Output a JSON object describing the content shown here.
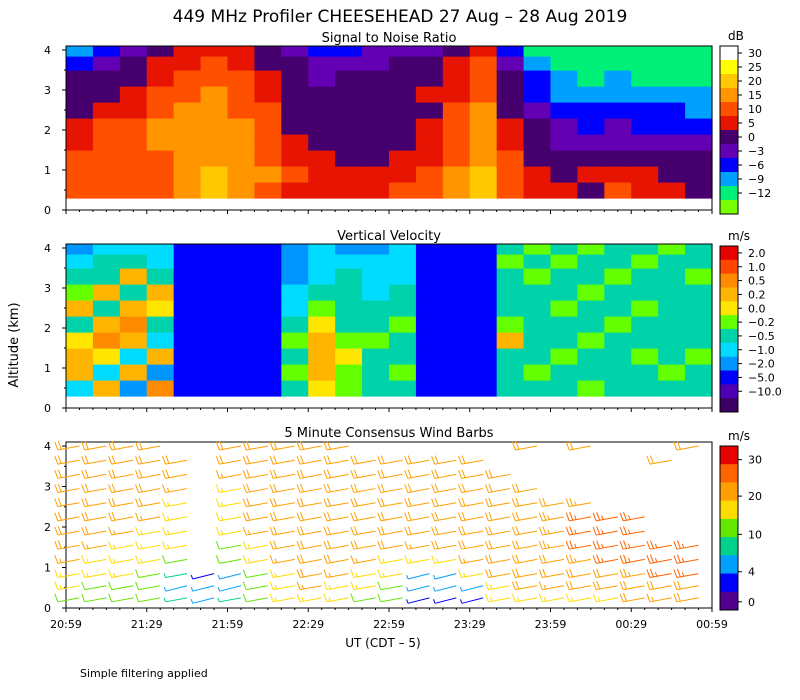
{
  "figure": {
    "title": "449 MHz Profiler CHEESEHEAD 27 Aug – 28 Aug 2019",
    "ylabel": "Altitude (km)",
    "xlabel": "UT  (CDT – 5)",
    "footnote": "Simple filtering applied"
  },
  "chart_data": [
    {
      "type": "heatmap",
      "title": "Signal to Noise Ratio",
      "ylabel": "Altitude (km)",
      "xticks": [
        "20:59",
        "21:29",
        "21:59",
        "22:29",
        "22:59",
        "23:29",
        "23:59",
        "00:29",
        "00:59"
      ],
      "yticks": [
        "0",
        "1",
        "2",
        "3",
        "4"
      ],
      "ylim": [
        0,
        4.1
      ],
      "data_ylim": [
        0.3,
        4.1
      ],
      "colorbar": {
        "unit": "dB",
        "labels": [
          "30",
          "25",
          "20",
          "15",
          "10",
          "5",
          "0",
          "−3",
          "−6",
          "−9",
          "−12"
        ],
        "colors": [
          "#ffffff",
          "#ffff00",
          "#ffc800",
          "#ff9600",
          "#ff5000",
          "#e61400",
          "#46006e",
          "#6400b4",
          "#0000ff",
          "#00a0ff",
          "#00f078",
          "#78ff00"
        ]
      },
      "columns_ut": [
        "20:59",
        "21:09",
        "21:19",
        "21:29",
        "21:39",
        "21:49",
        "21:59",
        "22:09",
        "22:19",
        "22:29",
        "22:39",
        "22:49",
        "22:59",
        "23:09",
        "23:19",
        "23:29",
        "23:39",
        "23:49",
        "23:59",
        "00:09",
        "00:19",
        "00:29",
        "00:39",
        "00:49"
      ],
      "levels_km": [
        0.5,
        0.9,
        1.3,
        1.7,
        2.1,
        2.5,
        2.9,
        3.3,
        3.7,
        4.0
      ],
      "snr_db": [
        [
          12,
          14,
          11,
          13,
          18,
          20,
          17,
          14,
          9,
          8,
          6,
          7,
          10,
          12,
          16,
          22,
          12,
          6,
          5,
          4,
          10,
          6,
          5,
          4
        ],
        [
          14,
          12,
          13,
          14,
          19,
          20,
          16,
          15,
          10,
          6,
          5,
          6,
          9,
          11,
          15,
          20,
          13,
          5,
          4,
          5,
          8,
          5,
          4,
          3
        ],
        [
          11,
          13,
          12,
          14,
          19,
          19,
          17,
          14,
          8,
          5,
          3,
          4,
          6,
          9,
          14,
          19,
          10,
          4,
          2,
          1,
          3,
          1,
          2,
          1
        ],
        [
          9,
          12,
          14,
          16,
          18,
          18,
          16,
          14,
          6,
          3,
          2,
          2,
          3,
          5,
          13,
          18,
          8,
          1,
          -1,
          -2,
          -1,
          -3,
          -2,
          -3
        ],
        [
          6,
          10,
          12,
          15,
          17,
          17,
          15,
          12,
          4,
          2,
          1,
          2,
          3,
          5,
          12,
          17,
          6,
          0,
          -3,
          -4,
          -3,
          -4,
          -4,
          -5
        ],
        [
          4,
          6,
          9,
          13,
          16,
          16,
          14,
          10,
          2,
          1,
          0,
          1,
          2,
          4,
          11,
          15,
          4,
          -2,
          -5,
          -6,
          -5,
          -6,
          -6,
          -7
        ],
        [
          2,
          3,
          6,
          10,
          14,
          15,
          12,
          7,
          3,
          0,
          1,
          2,
          3,
          5,
          9,
          14,
          3,
          -4,
          -7,
          -8,
          -7,
          -8,
          -9,
          -8
        ],
        [
          0,
          1,
          4,
          8,
          12,
          14,
          10,
          5,
          2,
          -1,
          0,
          1,
          2,
          3,
          7,
          12,
          1,
          -6,
          -9,
          -10,
          -9,
          -10,
          -11,
          -10
        ],
        [
          -4,
          -3,
          0,
          5,
          9,
          11,
          8,
          3,
          0,
          -3,
          -2,
          -1,
          0,
          1,
          5,
          10,
          -2,
          -9,
          -11,
          -12,
          -11,
          -12,
          -12,
          -12
        ],
        [
          -7,
          -6,
          -3,
          2,
          6,
          8,
          5,
          0,
          -3,
          -5,
          -4,
          -3,
          -2,
          -1,
          3,
          7,
          -5,
          -11,
          -12,
          -12,
          -12,
          -12,
          -12,
          -12
        ]
      ]
    },
    {
      "type": "heatmap",
      "title": "Vertical Velocity",
      "ylabel": "Altitude (km)",
      "xticks": [
        "20:59",
        "21:29",
        "21:59",
        "22:29",
        "22:59",
        "23:29",
        "23:59",
        "00:29",
        "00:59"
      ],
      "yticks": [
        "0",
        "1",
        "2",
        "3",
        "4"
      ],
      "ylim": [
        0,
        4.1
      ],
      "data_ylim": [
        0.3,
        4.1
      ],
      "colorbar": {
        "unit": "m/s",
        "labels": [
          "2.0",
          "1.0",
          "0.5",
          "0.2",
          "0.0",
          "−0.2",
          "−0.5",
          "−1.0",
          "−2.0",
          "−5.0",
          "−10.0"
        ],
        "colors": [
          "#e60000",
          "#ff4600",
          "#ff8c00",
          "#ffb400",
          "#ffe600",
          "#64ff00",
          "#00d2aa",
          "#00dcff",
          "#0096ff",
          "#0000ff",
          "#5000b4",
          "#3c0064"
        ]
      },
      "columns_ut": [
        "20:59",
        "21:09",
        "21:19",
        "21:29",
        "21:39",
        "21:49",
        "21:59",
        "22:09",
        "22:19",
        "22:29",
        "22:39",
        "22:49",
        "22:59",
        "23:09",
        "23:19",
        "23:29",
        "23:39",
        "23:49",
        "23:59",
        "00:09",
        "00:19",
        "00:29",
        "00:39",
        "00:49"
      ],
      "levels_km": [
        0.5,
        0.9,
        1.3,
        1.7,
        2.1,
        2.5,
        2.9,
        3.3,
        3.7,
        4.0
      ],
      "w_ms": [
        [
          -0.6,
          0.3,
          -1.2,
          0.5,
          -4,
          -5,
          -5,
          -4,
          -0.3,
          0.1,
          -0.2,
          -0.4,
          -0.3,
          -4,
          -5,
          -5,
          -0.5,
          -0.3,
          -0.4,
          -0.2,
          -0.5,
          -0.3,
          -0.4,
          -0.3
        ],
        [
          0.2,
          -0.8,
          0.4,
          -1.5,
          -4,
          -5,
          -5,
          -4,
          -0.2,
          0.2,
          -0.1,
          -0.5,
          -0.2,
          -4,
          -5,
          -5,
          -0.4,
          -0.2,
          -0.3,
          -0.4,
          -0.3,
          -0.5,
          -0.2,
          -0.4
        ],
        [
          0.4,
          0.1,
          -0.6,
          0.3,
          -4,
          -5,
          -5,
          -4,
          -0.4,
          0.3,
          0.1,
          -0.3,
          -0.4,
          -4,
          -5,
          -5,
          -0.3,
          -0.4,
          -0.2,
          -0.3,
          -0.4,
          -0.2,
          -0.3,
          -0.2
        ],
        [
          0.1,
          0.5,
          0.2,
          -0.7,
          -4,
          -5,
          -5,
          -4,
          -0.2,
          0.4,
          -0.1,
          -0.2,
          -0.3,
          -4,
          -5,
          -5,
          0.3,
          -0.3,
          -0.4,
          -0.2,
          -0.3,
          -0.4,
          -0.3,
          -0.5
        ],
        [
          -0.3,
          0.2,
          0.5,
          -0.4,
          -4,
          -5,
          -5,
          -4,
          -0.5,
          0.1,
          -0.3,
          -0.4,
          -0.2,
          -4,
          -5,
          -5,
          -0.2,
          -0.5,
          -0.3,
          -0.4,
          -0.2,
          -0.3,
          -0.4,
          -0.3
        ],
        [
          0.3,
          -0.4,
          0.2,
          0.1,
          -4,
          -5,
          -5,
          -4,
          -0.6,
          -0.2,
          -0.4,
          -0.3,
          -0.5,
          -4,
          -5,
          -5,
          -0.4,
          -0.3,
          -0.2,
          -0.5,
          -0.4,
          -0.2,
          -0.3,
          -0.4
        ],
        [
          -0.2,
          0.4,
          -0.5,
          0.3,
          -4,
          -5,
          -5,
          -4,
          -0.8,
          -0.4,
          -0.5,
          -0.6,
          -0.5,
          -4,
          -5,
          -5,
          -0.5,
          -0.4,
          -0.3,
          -0.2,
          -0.3,
          -0.4,
          -0.5,
          -0.3
        ],
        [
          -0.5,
          -0.3,
          0.2,
          -0.4,
          -4,
          -5,
          -5,
          -4,
          -1.2,
          -0.6,
          -0.4,
          -0.8,
          -0.6,
          -4,
          -5,
          -5,
          -0.3,
          -0.2,
          -0.4,
          -0.3,
          -0.2,
          -0.3,
          -0.4,
          -0.2
        ],
        [
          -1,
          -0.5,
          -0.3,
          -0.6,
          -4,
          -5,
          -5,
          -4,
          -1.5,
          -0.8,
          -0.6,
          -1,
          -0.8,
          -4,
          -5,
          -5,
          -0.2,
          -0.3,
          -0.2,
          -0.4,
          -0.3,
          -0.2,
          -0.3,
          -0.4
        ],
        [
          -1.5,
          -0.8,
          -0.6,
          -1,
          -4,
          -5,
          -5,
          -4,
          -2,
          -1,
          -1.2,
          -1.5,
          -1,
          -4,
          -5,
          -5,
          -0.3,
          -0.2,
          -0.3,
          -0.2,
          -0.4,
          -0.3,
          -0.2,
          -0.3
        ]
      ]
    },
    {
      "type": "scatter",
      "title": "5 Minute Consensus Wind Barbs",
      "ylabel": "Altitude (km)",
      "xticks": [
        "20:59",
        "21:29",
        "21:59",
        "22:29",
        "22:59",
        "23:29",
        "23:59",
        "00:29",
        "00:59"
      ],
      "yticks": [
        "0",
        "1",
        "2",
        "3",
        "4"
      ],
      "ylim": [
        0,
        4.1
      ],
      "colorbar": {
        "unit": "m/s",
        "labels": [
          "30",
          "20",
          "10",
          "4",
          "0"
        ],
        "colors": [
          "#e60000",
          "#ff6400",
          "#ffa000",
          "#ffdc00",
          "#64e600",
          "#00d28c",
          "#00a0ff",
          "#0000ff",
          "#50008c"
        ]
      },
      "columns_ut": [
        "20:59",
        "21:09",
        "21:19",
        "21:29",
        "21:39",
        "21:49",
        "21:59",
        "22:09",
        "22:19",
        "22:29",
        "22:39",
        "22:49",
        "22:59",
        "23:09",
        "23:19",
        "23:29",
        "23:39",
        "23:49",
        "23:59",
        "00:09",
        "00:19",
        "00:29",
        "00:39",
        "00:49"
      ],
      "levels_km": [
        0.25,
        0.55,
        0.85,
        1.2,
        1.55,
        1.9,
        2.25,
        2.6,
        2.95,
        3.3,
        3.65,
        4.0
      ],
      "speed_ms": [
        [
          12,
          10,
          11,
          8,
          6,
          4,
          6,
          12,
          14,
          16,
          14,
          12,
          10,
          3,
          3,
          3,
          14,
          16,
          15,
          14,
          16,
          18,
          17,
          18
        ],
        [
          14,
          12,
          11,
          9,
          5,
          5,
          4,
          10,
          15,
          17,
          15,
          14,
          12,
          4,
          4,
          4,
          16,
          18,
          17,
          18,
          19,
          20,
          21,
          22
        ],
        [
          16,
          14,
          13,
          10,
          6,
          3,
          4,
          11,
          16,
          18,
          17,
          15,
          14,
          5,
          4,
          14,
          18,
          20,
          21,
          22,
          22,
          23,
          24,
          24
        ],
        [
          17,
          16,
          15,
          14,
          12,
          0,
          8,
          14,
          17,
          19,
          18,
          17,
          16,
          15,
          15,
          17,
          19,
          21,
          22,
          23,
          24,
          25,
          26,
          26
        ],
        [
          18,
          17,
          16,
          15,
          14,
          0,
          12,
          16,
          18,
          19,
          19,
          18,
          18,
          17,
          18,
          19,
          20,
          22,
          23,
          24,
          25,
          26,
          27,
          27
        ],
        [
          19,
          18,
          17,
          16,
          15,
          0,
          14,
          17,
          18,
          19,
          19,
          19,
          19,
          18,
          19,
          20,
          21,
          22,
          23,
          24,
          25,
          26,
          0,
          0
        ],
        [
          20,
          19,
          18,
          17,
          16,
          0,
          15,
          18,
          18,
          19,
          19,
          19,
          19,
          19,
          19,
          20,
          21,
          22,
          23,
          24,
          25,
          25,
          0,
          0
        ],
        [
          20,
          20,
          19,
          18,
          16,
          0,
          16,
          18,
          19,
          19,
          19,
          19,
          19,
          19,
          20,
          20,
          21,
          22,
          22,
          23,
          0,
          0,
          0,
          0
        ],
        [
          21,
          20,
          19,
          18,
          17,
          0,
          16,
          18,
          19,
          19,
          19,
          19,
          19,
          19,
          20,
          21,
          21,
          22,
          0,
          0,
          0,
          0,
          0,
          0
        ],
        [
          21,
          21,
          20,
          19,
          18,
          0,
          17,
          19,
          19,
          19,
          19,
          19,
          20,
          20,
          20,
          21,
          22,
          0,
          0,
          0,
          0,
          0,
          0,
          0
        ],
        [
          22,
          21,
          20,
          19,
          18,
          0,
          18,
          19,
          19,
          20,
          20,
          20,
          20,
          20,
          21,
          22,
          0,
          0,
          0,
          0,
          0,
          0,
          21,
          0
        ],
        [
          22,
          21,
          20,
          20,
          0,
          0,
          18,
          19,
          20,
          20,
          20,
          0,
          0,
          0,
          0,
          0,
          0,
          20,
          0,
          21,
          0,
          0,
          0,
          22
        ]
      ]
    }
  ]
}
